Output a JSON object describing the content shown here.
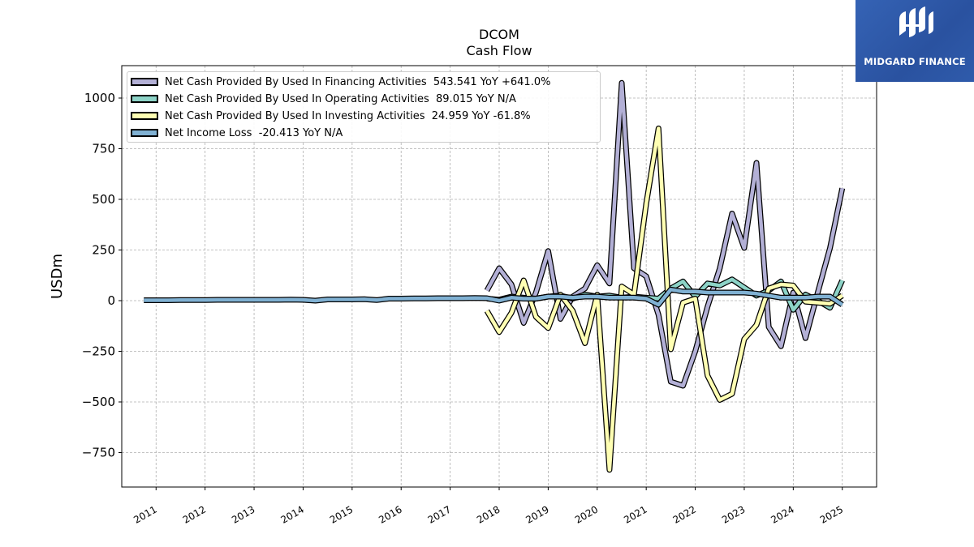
{
  "header": {
    "title": "DCOM",
    "subtitle": "Cash Flow"
  },
  "logo": {
    "text": "MIDGARD FINANCE",
    "icon": "midgard-logo-icon",
    "background": "#2d57a6"
  },
  "legend": {
    "items": [
      {
        "label": "Net Cash Provided By Used In Financing Activities  543.541 YoY +641.0%",
        "color": "#b3b0d6"
      },
      {
        "label": "Net Cash Provided By Used In Operating Activities  89.015 YoY N/A",
        "color": "#8dd3c7"
      },
      {
        "label": "Net Cash Provided By Used In Investing Activities  24.959 YoY -61.8%",
        "color": "#ffffb3"
      },
      {
        "label": "Net Income Loss  -20.413 YoY N/A",
        "color": "#80b1d3"
      }
    ]
  },
  "chart_data": {
    "type": "line",
    "title": "DCOM",
    "subtitle": "Cash Flow",
    "xlabel": "",
    "ylabel": "USDm",
    "xlim": [
      2010.3,
      2025.7
    ],
    "ylim": [
      -920,
      1160
    ],
    "x_ticks": [
      "2011",
      "2012",
      "2013",
      "2014",
      "2015",
      "2016",
      "2017",
      "2018",
      "2019",
      "2020",
      "2021",
      "2022",
      "2023",
      "2024",
      "2025"
    ],
    "y_ticks": [
      -750,
      -500,
      -250,
      0,
      250,
      500,
      750,
      1000
    ],
    "y_tick_labels": [
      "−750",
      "−500",
      "−250",
      "0",
      "250",
      "500",
      "750",
      "1000"
    ],
    "grid": true,
    "legend_position": "top-left",
    "series": [
      {
        "name": "Net Cash Provided By Used In Financing Activities",
        "color": "#b3b0d6",
        "x": [
          2017.75,
          2018.0,
          2018.25,
          2018.5,
          2018.75,
          2019.0,
          2019.25,
          2019.5,
          2019.75,
          2020.0,
          2020.25,
          2020.5,
          2020.75,
          2021.0,
          2021.25,
          2021.5,
          2021.75,
          2022.0,
          2022.25,
          2022.5,
          2022.75,
          2023.0,
          2023.25,
          2023.5,
          2023.75,
          2024.0,
          2024.25,
          2024.5,
          2024.75,
          2025.0
        ],
        "y": [
          50,
          160,
          80,
          -110,
          40,
          245,
          -90,
          20,
          60,
          175,
          85,
          1075,
          160,
          120,
          -70,
          -400,
          -420,
          -250,
          -30,
          160,
          430,
          260,
          680,
          -130,
          -225,
          40,
          -185,
          40,
          260,
          555
        ]
      },
      {
        "name": "Net Cash Provided By Used In Operating Activities",
        "color": "#8dd3c7",
        "x": [
          2017.75,
          2018.0,
          2018.25,
          2018.5,
          2018.75,
          2019.0,
          2019.25,
          2019.5,
          2019.75,
          2020.0,
          2020.25,
          2020.5,
          2020.75,
          2021.0,
          2021.25,
          2021.5,
          2021.75,
          2022.0,
          2022.25,
          2022.5,
          2022.75,
          2023.0,
          2023.25,
          2023.5,
          2023.75,
          2024.0,
          2024.25,
          2024.5,
          2024.75,
          2025.0
        ],
        "y": [
          10,
          5,
          20,
          15,
          10,
          20,
          25,
          10,
          30,
          20,
          25,
          15,
          20,
          15,
          10,
          60,
          95,
          20,
          85,
          75,
          105,
          65,
          25,
          50,
          95,
          -45,
          30,
          0,
          -35,
          100
        ]
      },
      {
        "name": "Net Cash Provided By Used In Investing Activities",
        "color": "#ffffb3",
        "x": [
          2017.75,
          2018.0,
          2018.25,
          2018.5,
          2018.75,
          2019.0,
          2019.25,
          2019.5,
          2019.75,
          2020.0,
          2020.25,
          2020.5,
          2020.75,
          2021.0,
          2021.25,
          2021.5,
          2021.75,
          2022.0,
          2022.25,
          2022.5,
          2022.75,
          2023.0,
          2023.25,
          2023.5,
          2023.75,
          2024.0,
          2024.25,
          2024.5,
          2024.75,
          2025.0
        ],
        "y": [
          -50,
          -155,
          -60,
          100,
          -80,
          -135,
          30,
          -50,
          -210,
          30,
          -835,
          70,
          30,
          480,
          850,
          -240,
          -10,
          10,
          -370,
          -490,
          -460,
          -190,
          -120,
          60,
          80,
          75,
          -5,
          -10,
          -15,
          25
        ]
      },
      {
        "name": "Net Income Loss",
        "color": "#80b1d3",
        "x": [
          2010.75,
          2011.0,
          2011.25,
          2011.5,
          2011.75,
          2012.0,
          2012.25,
          2012.5,
          2012.75,
          2013.0,
          2013.25,
          2013.5,
          2013.75,
          2014.0,
          2014.25,
          2014.5,
          2014.75,
          2015.0,
          2015.25,
          2015.5,
          2015.75,
          2016.0,
          2016.25,
          2016.5,
          2016.75,
          2017.0,
          2017.25,
          2017.5,
          2017.75,
          2018.0,
          2018.25,
          2018.5,
          2018.75,
          2019.0,
          2019.25,
          2019.5,
          2019.75,
          2020.0,
          2020.25,
          2020.5,
          2020.75,
          2021.0,
          2021.25,
          2021.5,
          2021.75,
          2022.0,
          2022.25,
          2022.5,
          2022.75,
          2023.0,
          2023.25,
          2023.5,
          2023.75,
          2024.0,
          2024.25,
          2024.5,
          2024.75,
          2025.0
        ],
        "y": [
          2,
          2,
          2,
          3,
          3,
          3,
          4,
          4,
          4,
          4,
          4,
          4,
          5,
          4,
          0,
          6,
          6,
          6,
          7,
          3,
          10,
          10,
          11,
          11,
          12,
          12,
          12,
          13,
          12,
          0,
          15,
          10,
          10,
          20,
          20,
          15,
          20,
          20,
          15,
          15,
          15,
          10,
          -20,
          55,
          45,
          45,
          40,
          40,
          40,
          40,
          35,
          25,
          15,
          15,
          15,
          20,
          20,
          -20
        ]
      }
    ]
  }
}
